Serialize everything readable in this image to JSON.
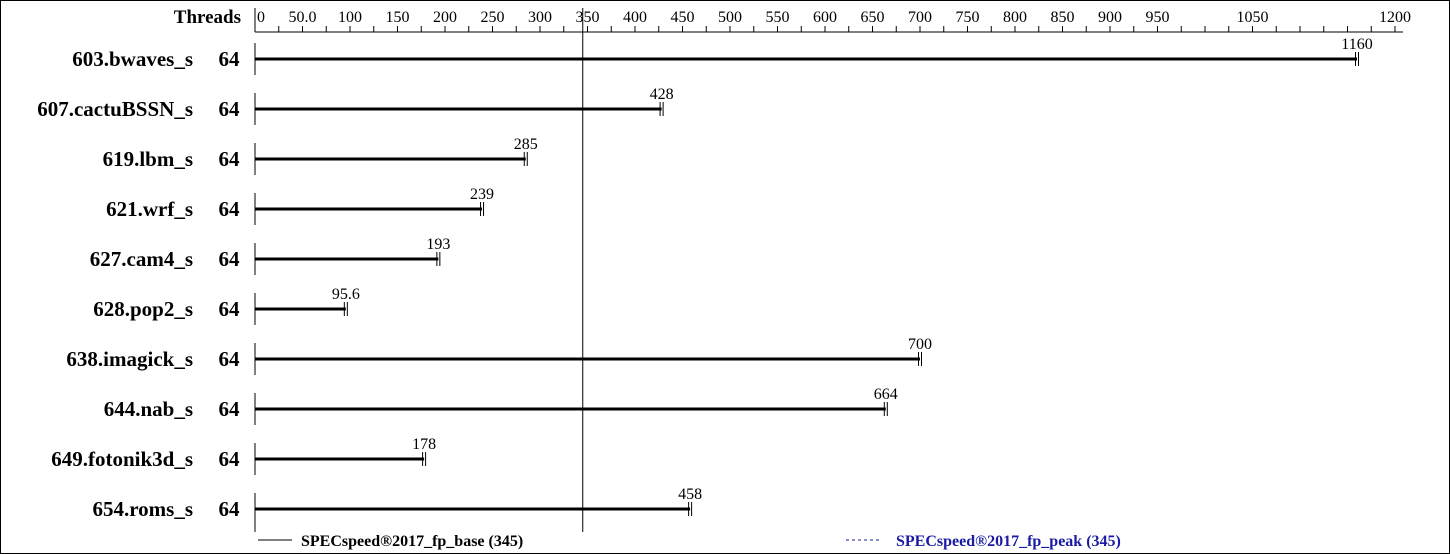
{
  "chart_data": {
    "type": "bar",
    "orientation": "horizontal",
    "threads_header": "Threads",
    "x_ticks": [
      "0",
      "50.0",
      "100",
      "150",
      "200",
      "250",
      "300",
      "350",
      "400",
      "450",
      "500",
      "550",
      "600",
      "650",
      "700",
      "750",
      "800",
      "850",
      "900",
      "950",
      "1050",
      "1200"
    ],
    "x_tick_values": [
      0,
      50,
      100,
      150,
      200,
      250,
      300,
      350,
      400,
      450,
      500,
      550,
      600,
      650,
      700,
      750,
      800,
      850,
      900,
      950,
      1050,
      1200
    ],
    "xlim": [
      0,
      1200
    ],
    "categories": [
      "603.bwaves_s",
      "607.cactuBSSN_s",
      "619.lbm_s",
      "621.wrf_s",
      "627.cam4_s",
      "628.pop2_s",
      "638.imagick_s",
      "644.nab_s",
      "649.fotonik3d_s",
      "654.roms_s"
    ],
    "threads": [
      "64",
      "64",
      "64",
      "64",
      "64",
      "64",
      "64",
      "64",
      "64",
      "64"
    ],
    "values": [
      1160,
      428,
      285,
      239,
      193,
      95.6,
      700,
      664,
      178,
      458
    ],
    "value_labels": [
      "1160",
      "428",
      "285",
      "239",
      "193",
      "95.6",
      "700",
      "664",
      "178",
      "458"
    ],
    "reference_line": {
      "value": 345
    },
    "legend": [
      {
        "label": "SPECspeed®2017_fp_base (345)",
        "style": "solid",
        "color": "#000000"
      },
      {
        "label": "SPECspeed®2017_fp_peak (345)",
        "style": "dashed",
        "color": "#1a1aa6"
      }
    ],
    "legend_placement": "bottom",
    "grid": false
  }
}
